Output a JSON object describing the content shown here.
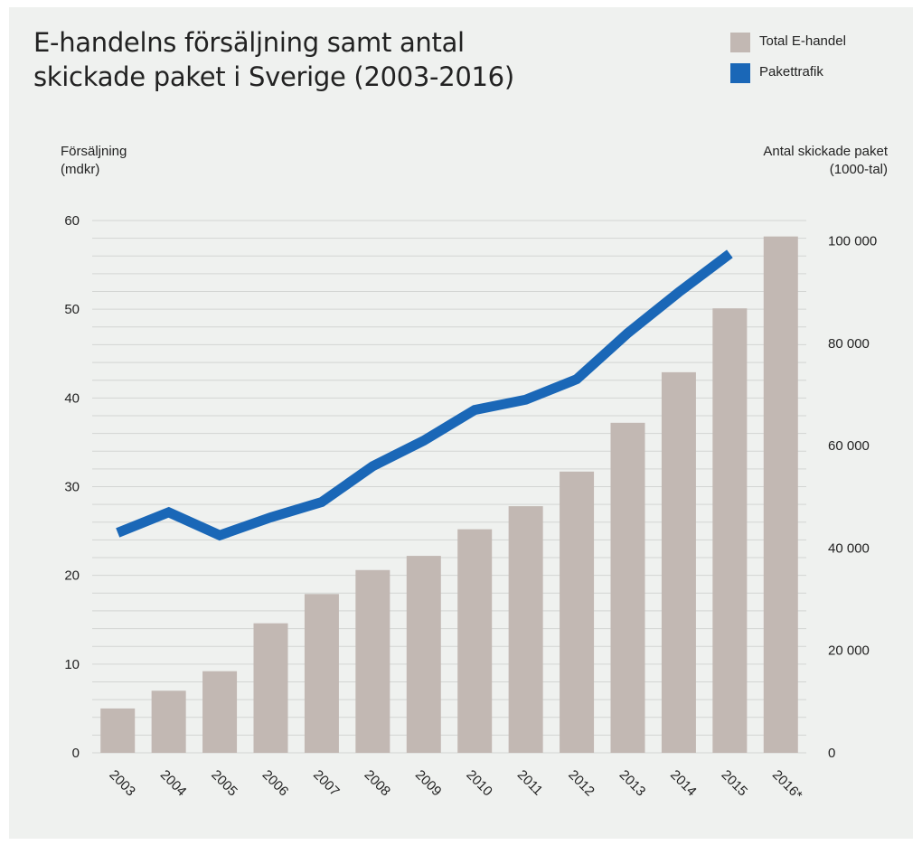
{
  "title_line1": "E-handelns försäljning samt antal",
  "title_line2": "skickade paket i Sverige (2003-2016)",
  "legend": [
    {
      "label": "Total E-handel",
      "color": "#c2b8b3"
    },
    {
      "label": "Pakettrafik",
      "color": "#1a67b7"
    }
  ],
  "left_axis": {
    "title_line1": "Försäljning",
    "title_line2": "(mdkr)"
  },
  "right_axis": {
    "title_line1": "Antal skickade paket",
    "title_line2": "(1000-tal)"
  },
  "chart_data": {
    "type": "bar",
    "categories": [
      "2003",
      "2004",
      "2005",
      "2006",
      "2007",
      "2008",
      "2009",
      "2010",
      "2011",
      "2012",
      "2013",
      "2014",
      "2015",
      "2016*"
    ],
    "series": [
      {
        "name": "Total E-handel",
        "type": "bar",
        "axis": "left",
        "color": "#c2b8b3",
        "values": [
          5.0,
          7.0,
          9.2,
          14.6,
          17.9,
          20.6,
          22.2,
          25.2,
          27.8,
          31.7,
          37.2,
          42.9,
          50.1,
          58.2
        ]
      },
      {
        "name": "Pakettrafik",
        "type": "line",
        "axis": "right",
        "color": "#1a67b7",
        "values": [
          43000,
          47000,
          42500,
          46000,
          49000,
          56000,
          61000,
          67000,
          69000,
          73000,
          82000,
          90000,
          97500,
          null
        ]
      }
    ],
    "ylim_left": [
      0,
      60
    ],
    "yticks_left": [
      0,
      10,
      20,
      30,
      40,
      50,
      60
    ],
    "ylim_right": [
      0,
      104000
    ],
    "yticks_right": [
      0,
      20000,
      40000,
      60000,
      80000,
      100000
    ],
    "ytick_labels_right": [
      "0",
      "20 000",
      "40 000",
      "60 000",
      "80 000",
      "100 000"
    ],
    "grid": true,
    "legend_position": "top-right"
  }
}
